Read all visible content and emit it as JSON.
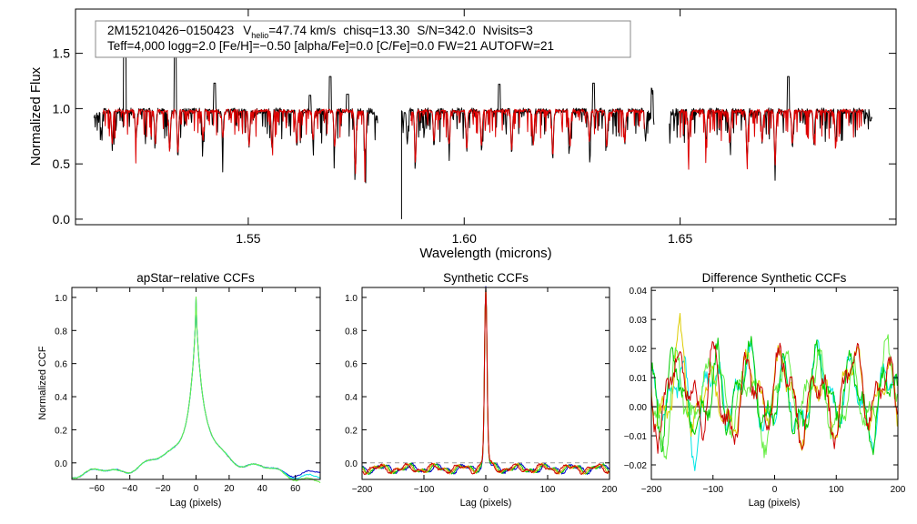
{
  "colors": {
    "background": "#ffffff",
    "observed": "#000000",
    "model": "#dd0000",
    "black": "#000000",
    "blue": "#0000cc",
    "cyan": "#00e5e5",
    "green": "#00cc00",
    "lightgreen": "#66ee44",
    "orange": "#ee9900",
    "yellow": "#ddcc00",
    "red": "#cc0000"
  },
  "info": {
    "star_id": "2M15210426−0150423",
    "vhelio_label": "V",
    "vhelio_sub": "helio",
    "vhelio_value": "=47.74 km/s",
    "chisq": "chisq=13.30",
    "snr": "S/N=342.0",
    "nvisits": "Nvisits=3",
    "line2": "Teff=4,000 logg=2.0 [Fe/H]=−0.50 [alpha/Fe]=0.0 [C/Fe]=0.0 FW=21 AUTOFW=21"
  },
  "chart_data": [
    {
      "type": "line",
      "name": "spectrum",
      "title": "",
      "xlabel": "Wavelength (microns)",
      "ylabel": "Normalized Flux",
      "xlim": [
        1.51,
        1.7
      ],
      "ylim": [
        -0.05,
        1.9
      ],
      "xticks": [
        1.55,
        1.6,
        1.65
      ],
      "xtick_labels": [
        "1.55",
        "1.60",
        "1.65"
      ],
      "yticks": [
        0.0,
        0.5,
        1.0,
        1.5
      ],
      "ytick_labels": [
        "0.0",
        "0.5",
        "1.0",
        "1.5"
      ],
      "chips": [
        [
          1.5142,
          1.58
        ],
        [
          1.5855,
          1.644
        ],
        [
          1.6475,
          1.6945
        ]
      ],
      "continuum": 0.98,
      "series": [
        {
          "name": "observed",
          "color_key": "observed"
        },
        {
          "name": "model",
          "color_key": "model"
        }
      ],
      "absorption_lines": [
        {
          "x": 1.516,
          "depth": 0.22
        },
        {
          "x": 1.5185,
          "depth": 0.3
        },
        {
          "x": 1.524,
          "depth": 0.25
        },
        {
          "x": 1.5285,
          "depth": 0.31
        },
        {
          "x": 1.5318,
          "depth": 0.37
        },
        {
          "x": 1.5337,
          "depth": 0.4
        },
        {
          "x": 1.5395,
          "depth": 0.28
        },
        {
          "x": 1.5441,
          "depth": 0.26
        },
        {
          "x": 1.5502,
          "depth": 0.33
        },
        {
          "x": 1.5555,
          "depth": 0.34
        },
        {
          "x": 1.5612,
          "depth": 0.3
        },
        {
          "x": 1.565,
          "depth": 0.28
        },
        {
          "x": 1.57,
          "depth": 0.36
        },
        {
          "x": 1.5748,
          "depth": 0.52
        },
        {
          "x": 1.5771,
          "depth": 0.46
        },
        {
          "x": 1.5868,
          "depth": 0.26
        },
        {
          "x": 1.5887,
          "depth": 0.46
        },
        {
          "x": 1.593,
          "depth": 0.3
        },
        {
          "x": 1.5965,
          "depth": 0.32
        },
        {
          "x": 1.6006,
          "depth": 0.36
        },
        {
          "x": 1.604,
          "depth": 0.34
        },
        {
          "x": 1.611,
          "depth": 0.38
        },
        {
          "x": 1.616,
          "depth": 0.3
        },
        {
          "x": 1.6205,
          "depth": 0.42
        },
        {
          "x": 1.6245,
          "depth": 0.33
        },
        {
          "x": 1.629,
          "depth": 0.3
        },
        {
          "x": 1.633,
          "depth": 0.34
        },
        {
          "x": 1.6372,
          "depth": 0.3
        },
        {
          "x": 1.642,
          "depth": 0.28
        },
        {
          "x": 1.652,
          "depth": 0.28
        },
        {
          "x": 1.656,
          "depth": 0.3
        },
        {
          "x": 1.6615,
          "depth": 0.32
        },
        {
          "x": 1.6655,
          "depth": 0.44
        },
        {
          "x": 1.669,
          "depth": 0.3
        },
        {
          "x": 1.672,
          "depth": 0.5
        },
        {
          "x": 1.676,
          "depth": 0.32
        },
        {
          "x": 1.681,
          "depth": 0.3
        },
        {
          "x": 1.686,
          "depth": 0.26
        }
      ],
      "emission_spikes": [
        {
          "x": 1.5214,
          "height": 1.75
        },
        {
          "x": 1.5331,
          "height": 1.68
        },
        {
          "x": 1.5422,
          "height": 1.23
        },
        {
          "x": 1.5643,
          "height": 1.12
        },
        {
          "x": 1.569,
          "height": 1.29
        },
        {
          "x": 1.573,
          "height": 1.13
        },
        {
          "x": 1.6081,
          "height": 1.22
        },
        {
          "x": 1.63,
          "height": 1.23
        },
        {
          "x": 1.6435,
          "height": 1.21
        },
        {
          "x": 1.675,
          "height": 1.29
        }
      ],
      "deep_feature": {
        "x": 1.5855,
        "value": 0.0
      }
    },
    {
      "type": "line",
      "name": "apstar-relative-ccfs",
      "title": "apStar−relative CCFs",
      "xlabel": "Lag (pixels)",
      "ylabel": "Normalized CCF",
      "xlim": [
        -75,
        75
      ],
      "ylim": [
        -0.1,
        1.06
      ],
      "xticks": [
        -60,
        -40,
        -20,
        0,
        20,
        40,
        60
      ],
      "xtick_labels": [
        "−60",
        "−40",
        "−20",
        "0",
        "20",
        "40",
        "60"
      ],
      "yticks": [
        0.0,
        0.2,
        0.4,
        0.6,
        0.8,
        1.0
      ],
      "ytick_labels": [
        "0.0",
        "0.2",
        "0.4",
        "0.6",
        "0.8",
        "1.0"
      ],
      "peak": 1.0,
      "series": [
        {
          "name": "visit 1",
          "color_key": "blue"
        },
        {
          "name": "visit 2",
          "color_key": "cyan"
        },
        {
          "name": "visit 3",
          "color_key": "lightgreen"
        }
      ]
    },
    {
      "type": "line",
      "name": "synthetic-ccfs",
      "title": "Synthetic CCFs",
      "xlabel": "Lag (pixels)",
      "ylabel": "",
      "xlim": [
        -200,
        200
      ],
      "ylim": [
        -0.1,
        1.06
      ],
      "xticks": [
        -200,
        -100,
        0,
        100,
        200
      ],
      "xtick_labels": [
        "−200",
        "−100",
        "0",
        "100",
        "200"
      ],
      "yticks": [
        0.0,
        0.2,
        0.4,
        0.6,
        0.8,
        1.0
      ],
      "ytick_labels": [
        "0.0",
        "0.2",
        "0.4",
        "0.6",
        "0.8",
        "1.0"
      ],
      "peak": 1.0,
      "series": [
        {
          "name": "apStar",
          "color_key": "blue"
        },
        {
          "name": "visit 1",
          "color_key": "green"
        },
        {
          "name": "visit 2",
          "color_key": "orange"
        },
        {
          "name": "visit 3",
          "color_key": "red"
        }
      ]
    },
    {
      "type": "line",
      "name": "difference-synthetic-ccfs",
      "title": "Difference Synthetic CCFs",
      "xlabel": "Lag (pixels)",
      "ylabel": "",
      "xlim": [
        -200,
        200
      ],
      "ylim": [
        -0.025,
        0.041
      ],
      "xticks": [
        -200,
        -100,
        0,
        100,
        200
      ],
      "xtick_labels": [
        "−200",
        "−100",
        "0",
        "100",
        "200"
      ],
      "yticks": [
        -0.02,
        -0.01,
        0.0,
        0.01,
        0.02,
        0.03,
        0.04
      ],
      "ytick_labels": [
        "−0.02",
        "−0.01",
        "0.00",
        "0.01",
        "0.02",
        "0.03",
        "0.04"
      ],
      "amplitude_range": [
        -0.022,
        0.038
      ],
      "series": [
        {
          "name": "zero",
          "color_key": "black"
        },
        {
          "name": "diff 1",
          "color_key": "cyan"
        },
        {
          "name": "diff 2",
          "color_key": "yellow"
        },
        {
          "name": "diff 3",
          "color_key": "lightgreen"
        },
        {
          "name": "diff 4",
          "color_key": "green"
        },
        {
          "name": "diff 5",
          "color_key": "red"
        }
      ]
    }
  ]
}
